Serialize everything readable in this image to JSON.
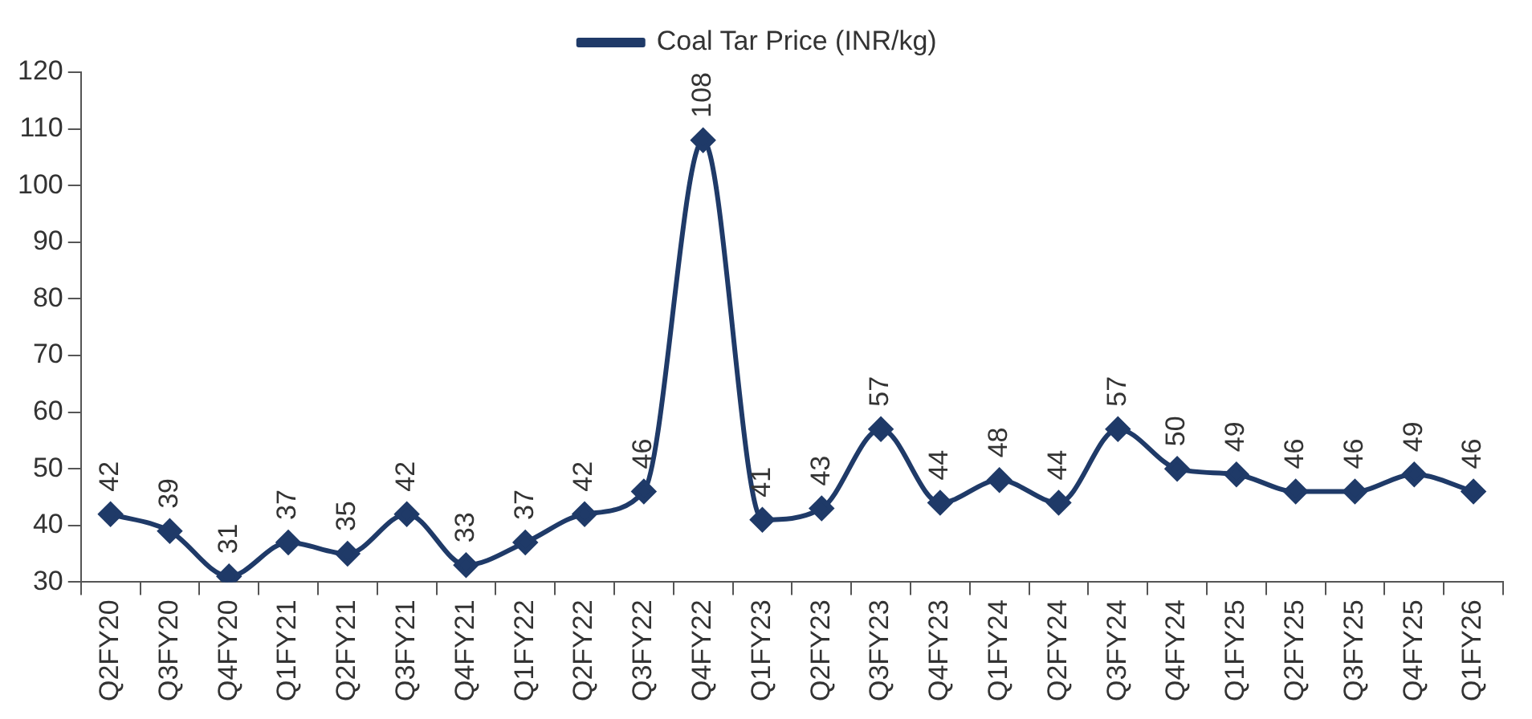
{
  "chart_data": {
    "type": "line",
    "categories": [
      "Q2FY20",
      "Q3FY20",
      "Q4FY20",
      "Q1FY21",
      "Q2FY21",
      "Q3FY21",
      "Q4FY21",
      "Q1FY22",
      "Q2FY22",
      "Q3FY22",
      "Q4FY22",
      "Q1FY23",
      "Q2FY23",
      "Q3FY23",
      "Q4FY23",
      "Q1FY24",
      "Q2FY24",
      "Q3FY24",
      "Q4FY24",
      "Q1FY25",
      "Q2FY25",
      "Q3FY25",
      "Q4FY25",
      "Q1FY26"
    ],
    "series": [
      {
        "name": "Coal Tar Price (INR/kg)",
        "color": "#1f3a68",
        "values": [
          42,
          39,
          31,
          37,
          35,
          42,
          33,
          37,
          42,
          46,
          108,
          41,
          43,
          57,
          44,
          48,
          44,
          57,
          50,
          49,
          46,
          46,
          49,
          46
        ]
      }
    ],
    "ylim": [
      30,
      120
    ],
    "yticks": [
      30,
      40,
      50,
      60,
      70,
      80,
      90,
      100,
      110,
      120
    ],
    "legend": "top",
    "marker": "diamond",
    "line_style": "solid",
    "data_labels": true
  }
}
